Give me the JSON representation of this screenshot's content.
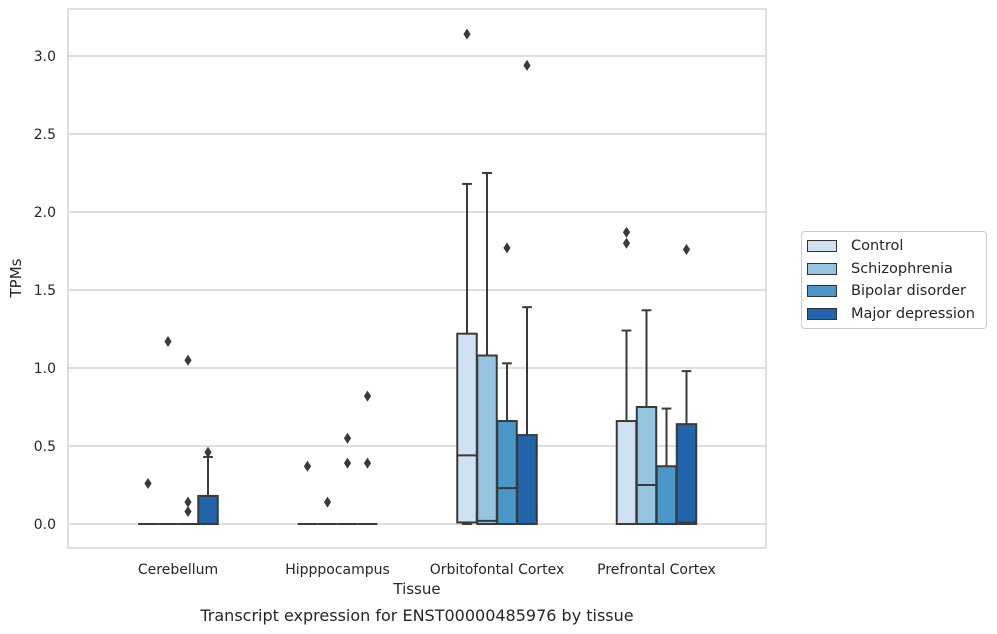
{
  "caption": "Transcript expression for ENST00000485976 by tissue",
  "chart_data": {
    "type": "box",
    "xlabel": "Tissue",
    "ylabel": "TPMs",
    "ylim": [
      -0.15,
      3.3
    ],
    "yticks": [
      0.0,
      0.5,
      1.0,
      1.5,
      2.0,
      2.5,
      3.0
    ],
    "ytick_labels": [
      "0.0",
      "0.5",
      "1.0",
      "1.5",
      "2.0",
      "2.5",
      "3.0"
    ],
    "grid": "horizontal",
    "legend_position": "right-outside",
    "categories": [
      "Cerebellum",
      "Hipppocampus",
      "Orbitofontal Cortex",
      "Prefrontal Cortex"
    ],
    "series": [
      {
        "name": "Control",
        "color": "#d0e2f2",
        "boxes": [
          {
            "q1": 0,
            "median": 0,
            "q3": 0,
            "whisker_low": 0,
            "whisker_high": 0,
            "outliers": [
              0.26
            ]
          },
          {
            "q1": 0,
            "median": 0,
            "q3": 0,
            "whisker_low": 0,
            "whisker_high": 0,
            "outliers": [
              0.37
            ]
          },
          {
            "q1": 0.01,
            "median": 0.44,
            "q3": 1.22,
            "whisker_low": 0,
            "whisker_high": 2.18,
            "outliers": [
              3.14
            ]
          },
          {
            "q1": 0,
            "median": 0,
            "q3": 0.66,
            "whisker_low": 0,
            "whisker_high": 1.24,
            "outliers": [
              1.8,
              1.87
            ]
          }
        ]
      },
      {
        "name": "Schizophrenia",
        "color": "#94c4df",
        "boxes": [
          {
            "q1": 0,
            "median": 0,
            "q3": 0,
            "whisker_low": 0,
            "whisker_high": 0,
            "outliers": [
              1.17
            ]
          },
          {
            "q1": 0,
            "median": 0,
            "q3": 0,
            "whisker_low": 0,
            "whisker_high": 0,
            "outliers": [
              0.14
            ]
          },
          {
            "q1": 0,
            "median": 0.02,
            "q3": 1.08,
            "whisker_low": 0,
            "whisker_high": 2.25,
            "outliers": []
          },
          {
            "q1": 0,
            "median": 0.25,
            "q3": 0.75,
            "whisker_low": 0,
            "whisker_high": 1.37,
            "outliers": []
          }
        ]
      },
      {
        "name": "Bipolar disorder",
        "color": "#4a98c9",
        "boxes": [
          {
            "q1": 0,
            "median": 0,
            "q3": 0,
            "whisker_low": 0,
            "whisker_high": 0,
            "outliers": [
              0.08,
              0.14,
              1.05
            ]
          },
          {
            "q1": 0,
            "median": 0,
            "q3": 0,
            "whisker_low": 0,
            "whisker_high": 0,
            "outliers": [
              0.39,
              0.55
            ]
          },
          {
            "q1": 0,
            "median": 0.23,
            "q3": 0.66,
            "whisker_low": 0,
            "whisker_high": 1.03,
            "outliers": [
              1.77
            ]
          },
          {
            "q1": 0,
            "median": 0,
            "q3": 0.37,
            "whisker_low": 0,
            "whisker_high": 0.74,
            "outliers": []
          }
        ]
      },
      {
        "name": "Major depression",
        "color": "#2164ab",
        "boxes": [
          {
            "q1": 0,
            "median": 0,
            "q3": 0.18,
            "whisker_low": 0,
            "whisker_high": 0.43,
            "outliers": [
              0.46
            ]
          },
          {
            "q1": 0,
            "median": 0,
            "q3": 0,
            "whisker_low": 0,
            "whisker_high": 0,
            "outliers": [
              0.39,
              0.82
            ]
          },
          {
            "q1": 0,
            "median": 0,
            "q3": 0.57,
            "whisker_low": 0,
            "whisker_high": 1.39,
            "outliers": [
              2.94
            ]
          },
          {
            "q1": 0,
            "median": 0.01,
            "q3": 0.64,
            "whisker_low": 0,
            "whisker_high": 0.98,
            "outliers": [
              1.76
            ]
          }
        ]
      }
    ]
  }
}
